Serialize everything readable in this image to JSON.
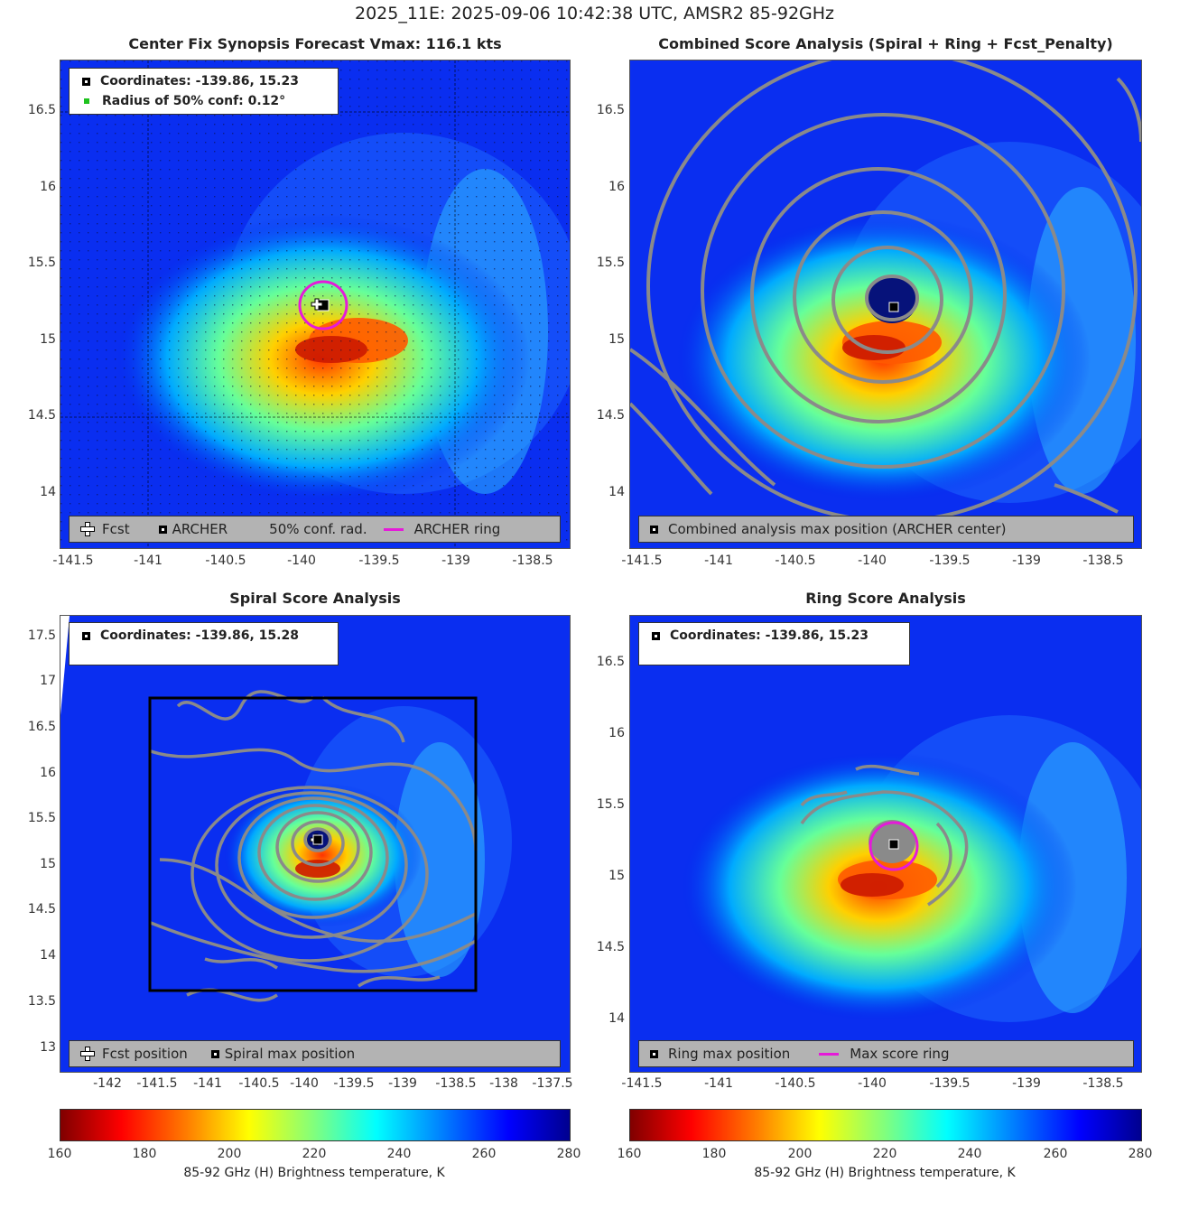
{
  "suptitle": "2025_11E: 2025-09-06 10:42:38 UTC, AMSR2 85-92GHz",
  "panels": {
    "synopsis": {
      "title": "Center Fix Synopsis     Forecast Vmax: 116.1 kts",
      "coord_label": "Coordinates: -139.86, 15.23",
      "radius_label": "Radius of 50% conf: 0.12°",
      "legend": {
        "fcst": "Fcst",
        "archer": "ARCHER",
        "conf": "50% conf. rad.",
        "ring": "ARCHER ring"
      },
      "yticks": [
        "16.5",
        "16",
        "15.5",
        "15",
        "14.5",
        "14"
      ],
      "xticks": [
        "-141.5",
        "-141",
        "-140.5",
        "-140",
        "-139.5",
        "-139",
        "-138.5"
      ]
    },
    "combined": {
      "title": "Combined Score Analysis (Spiral + Ring + Fcst_Penalty)",
      "legend": {
        "max": "Combined analysis max position (ARCHER center)"
      },
      "yticks": [
        "16.5",
        "16",
        "15.5",
        "15",
        "14.5",
        "14"
      ],
      "xticks": [
        "-141.5",
        "-141",
        "-140.5",
        "-140",
        "-139.5",
        "-139",
        "-138.5"
      ]
    },
    "spiral": {
      "title": "Spiral Score Analysis",
      "coord_label": "Coordinates: -139.86, 15.28",
      "legend": {
        "fcst": "Fcst position",
        "max": "Spiral max position"
      },
      "yticks": [
        "17.5",
        "17",
        "16.5",
        "16",
        "15.5",
        "15",
        "14.5",
        "14",
        "13.5",
        "13"
      ],
      "xticks": [
        "-142",
        "-141.5",
        "-141",
        "-140.5",
        "-140",
        "-139.5",
        "-139",
        "-138.5",
        "-138",
        "-137.5"
      ]
    },
    "ring": {
      "title": "Ring Score Analysis",
      "coord_label": "Coordinates: -139.86, 15.23",
      "legend": {
        "max": "Ring max position",
        "ring": "Max score ring"
      },
      "yticks": [
        "16.5",
        "16",
        "15.5",
        "15",
        "14.5",
        "14"
      ],
      "xticks": [
        "-141.5",
        "-141",
        "-140.5",
        "-140",
        "-139.5",
        "-139",
        "-138.5"
      ]
    }
  },
  "colorbar": {
    "ticks": [
      "160",
      "180",
      "200",
      "220",
      "240",
      "260",
      "280"
    ],
    "label": "85-92 GHz (H) Brightness temperature, K"
  }
}
